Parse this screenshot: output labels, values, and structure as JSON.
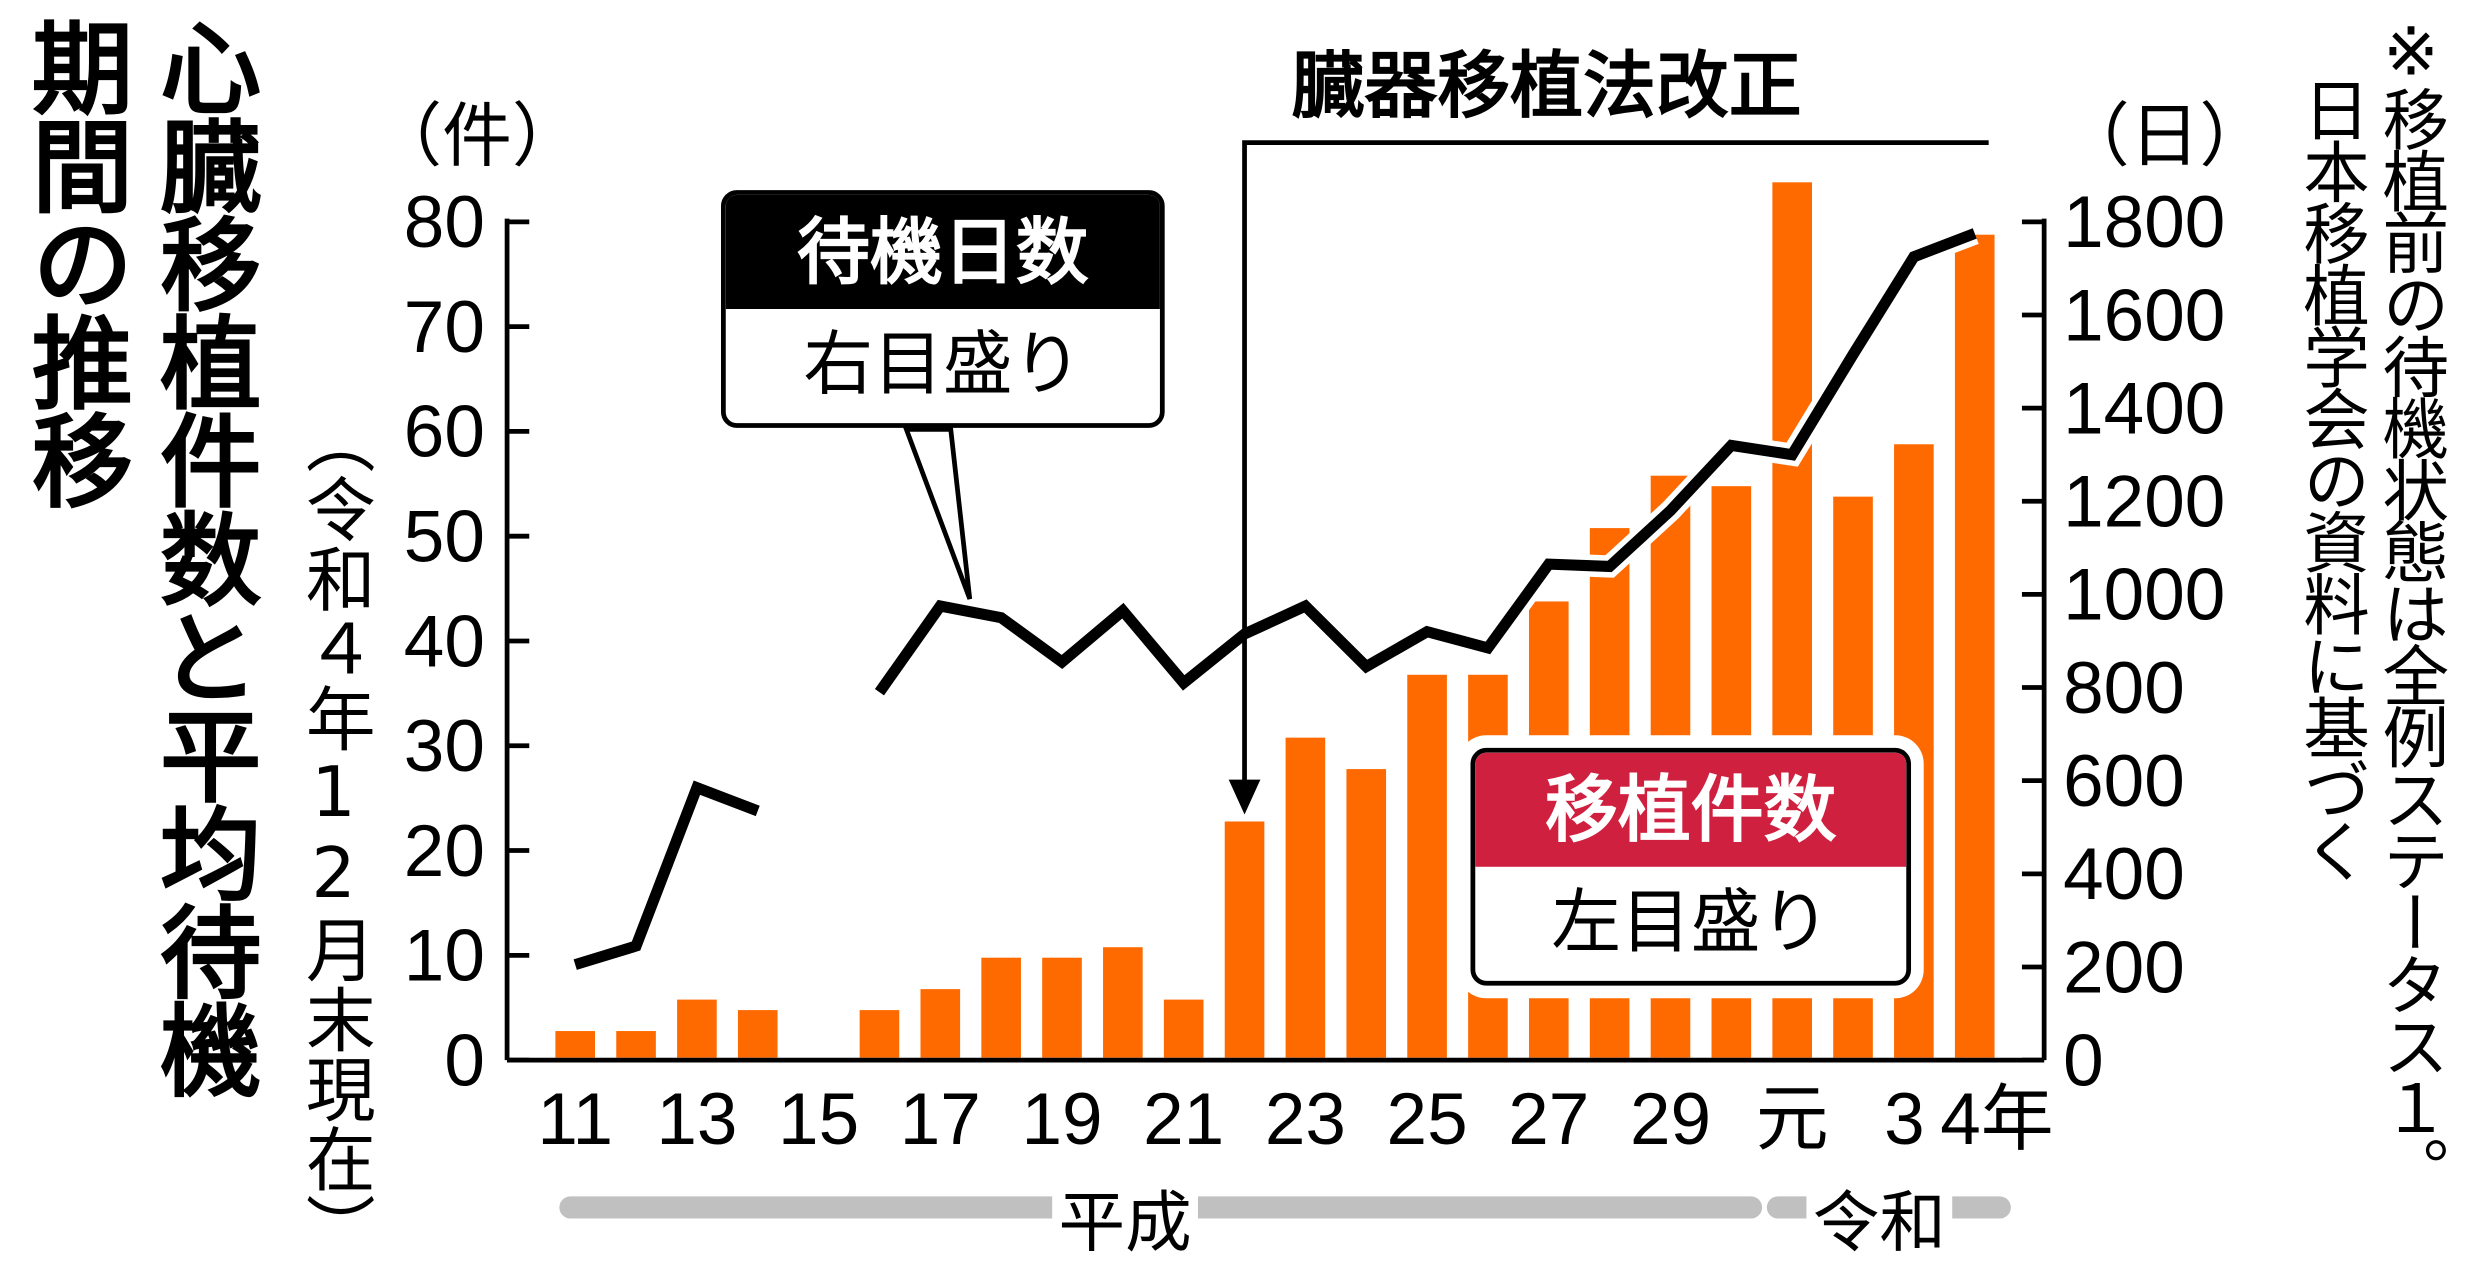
{
  "title": "心臓移植件数と平均待機期間の推移",
  "title_lines": [
    "心臓移植件数と平均待機",
    "期間の推移"
  ],
  "subtitle": "（令和４年12月末現在）",
  "notes": [
    "※移植前の待機状態は全例ステータス１。",
    "日本移植学会の資料に基づく"
  ],
  "colors": {
    "bars": "#ff6a00",
    "line": "#000000",
    "transplant_label": "#d0203f",
    "waiting_label": "#000000",
    "era_bar": "#c0c0c0"
  },
  "chart_data": {
    "type": "bar+line",
    "categories": [
      "11",
      "12",
      "13",
      "14",
      "15",
      "16",
      "17",
      "18",
      "19",
      "20",
      "21",
      "22",
      "23",
      "24",
      "25",
      "26",
      "27",
      "28",
      "29",
      "30",
      "元",
      "2",
      "3",
      "4"
    ],
    "x_tick_labels": [
      "11",
      "13",
      "15",
      "17",
      "19",
      "21",
      "23",
      "25",
      "27",
      "29",
      "元",
      "3",
      "4年"
    ],
    "eras": [
      {
        "label": "平成"
      },
      {
        "label": "令和"
      }
    ],
    "series": [
      {
        "name": "移植件数",
        "axis_note": "左目盛り",
        "type": "bar",
        "axis": "left",
        "values": [
          3,
          3,
          6,
          5,
          0,
          5,
          7,
          10,
          10,
          11,
          6,
          23,
          31,
          28,
          37,
          37,
          44,
          51,
          56,
          55,
          84,
          54,
          59,
          79
        ]
      },
      {
        "name": "待機日数",
        "axis_note": "右目盛り",
        "type": "line",
        "axis": "right",
        "values": [
          205,
          245,
          585,
          535,
          null,
          790,
          975,
          950,
          855,
          965,
          810,
          915,
          975,
          845,
          920,
          885,
          1065,
          1060,
          1180,
          1320,
          1300,
          1515,
          1725,
          1775
        ]
      }
    ],
    "left_axis": {
      "unit": "（件）",
      "ylim": [
        0,
        80
      ],
      "ticks": [
        0,
        10,
        20,
        30,
        40,
        50,
        60,
        70,
        80
      ]
    },
    "right_axis": {
      "unit": "（日）",
      "ylim": [
        0,
        1800
      ],
      "ticks": [
        0,
        200,
        400,
        600,
        800,
        1000,
        1200,
        1400,
        1600,
        1800
      ]
    },
    "annotation": {
      "text": "臓器移植法改正",
      "category": "22"
    },
    "grid": false
  }
}
